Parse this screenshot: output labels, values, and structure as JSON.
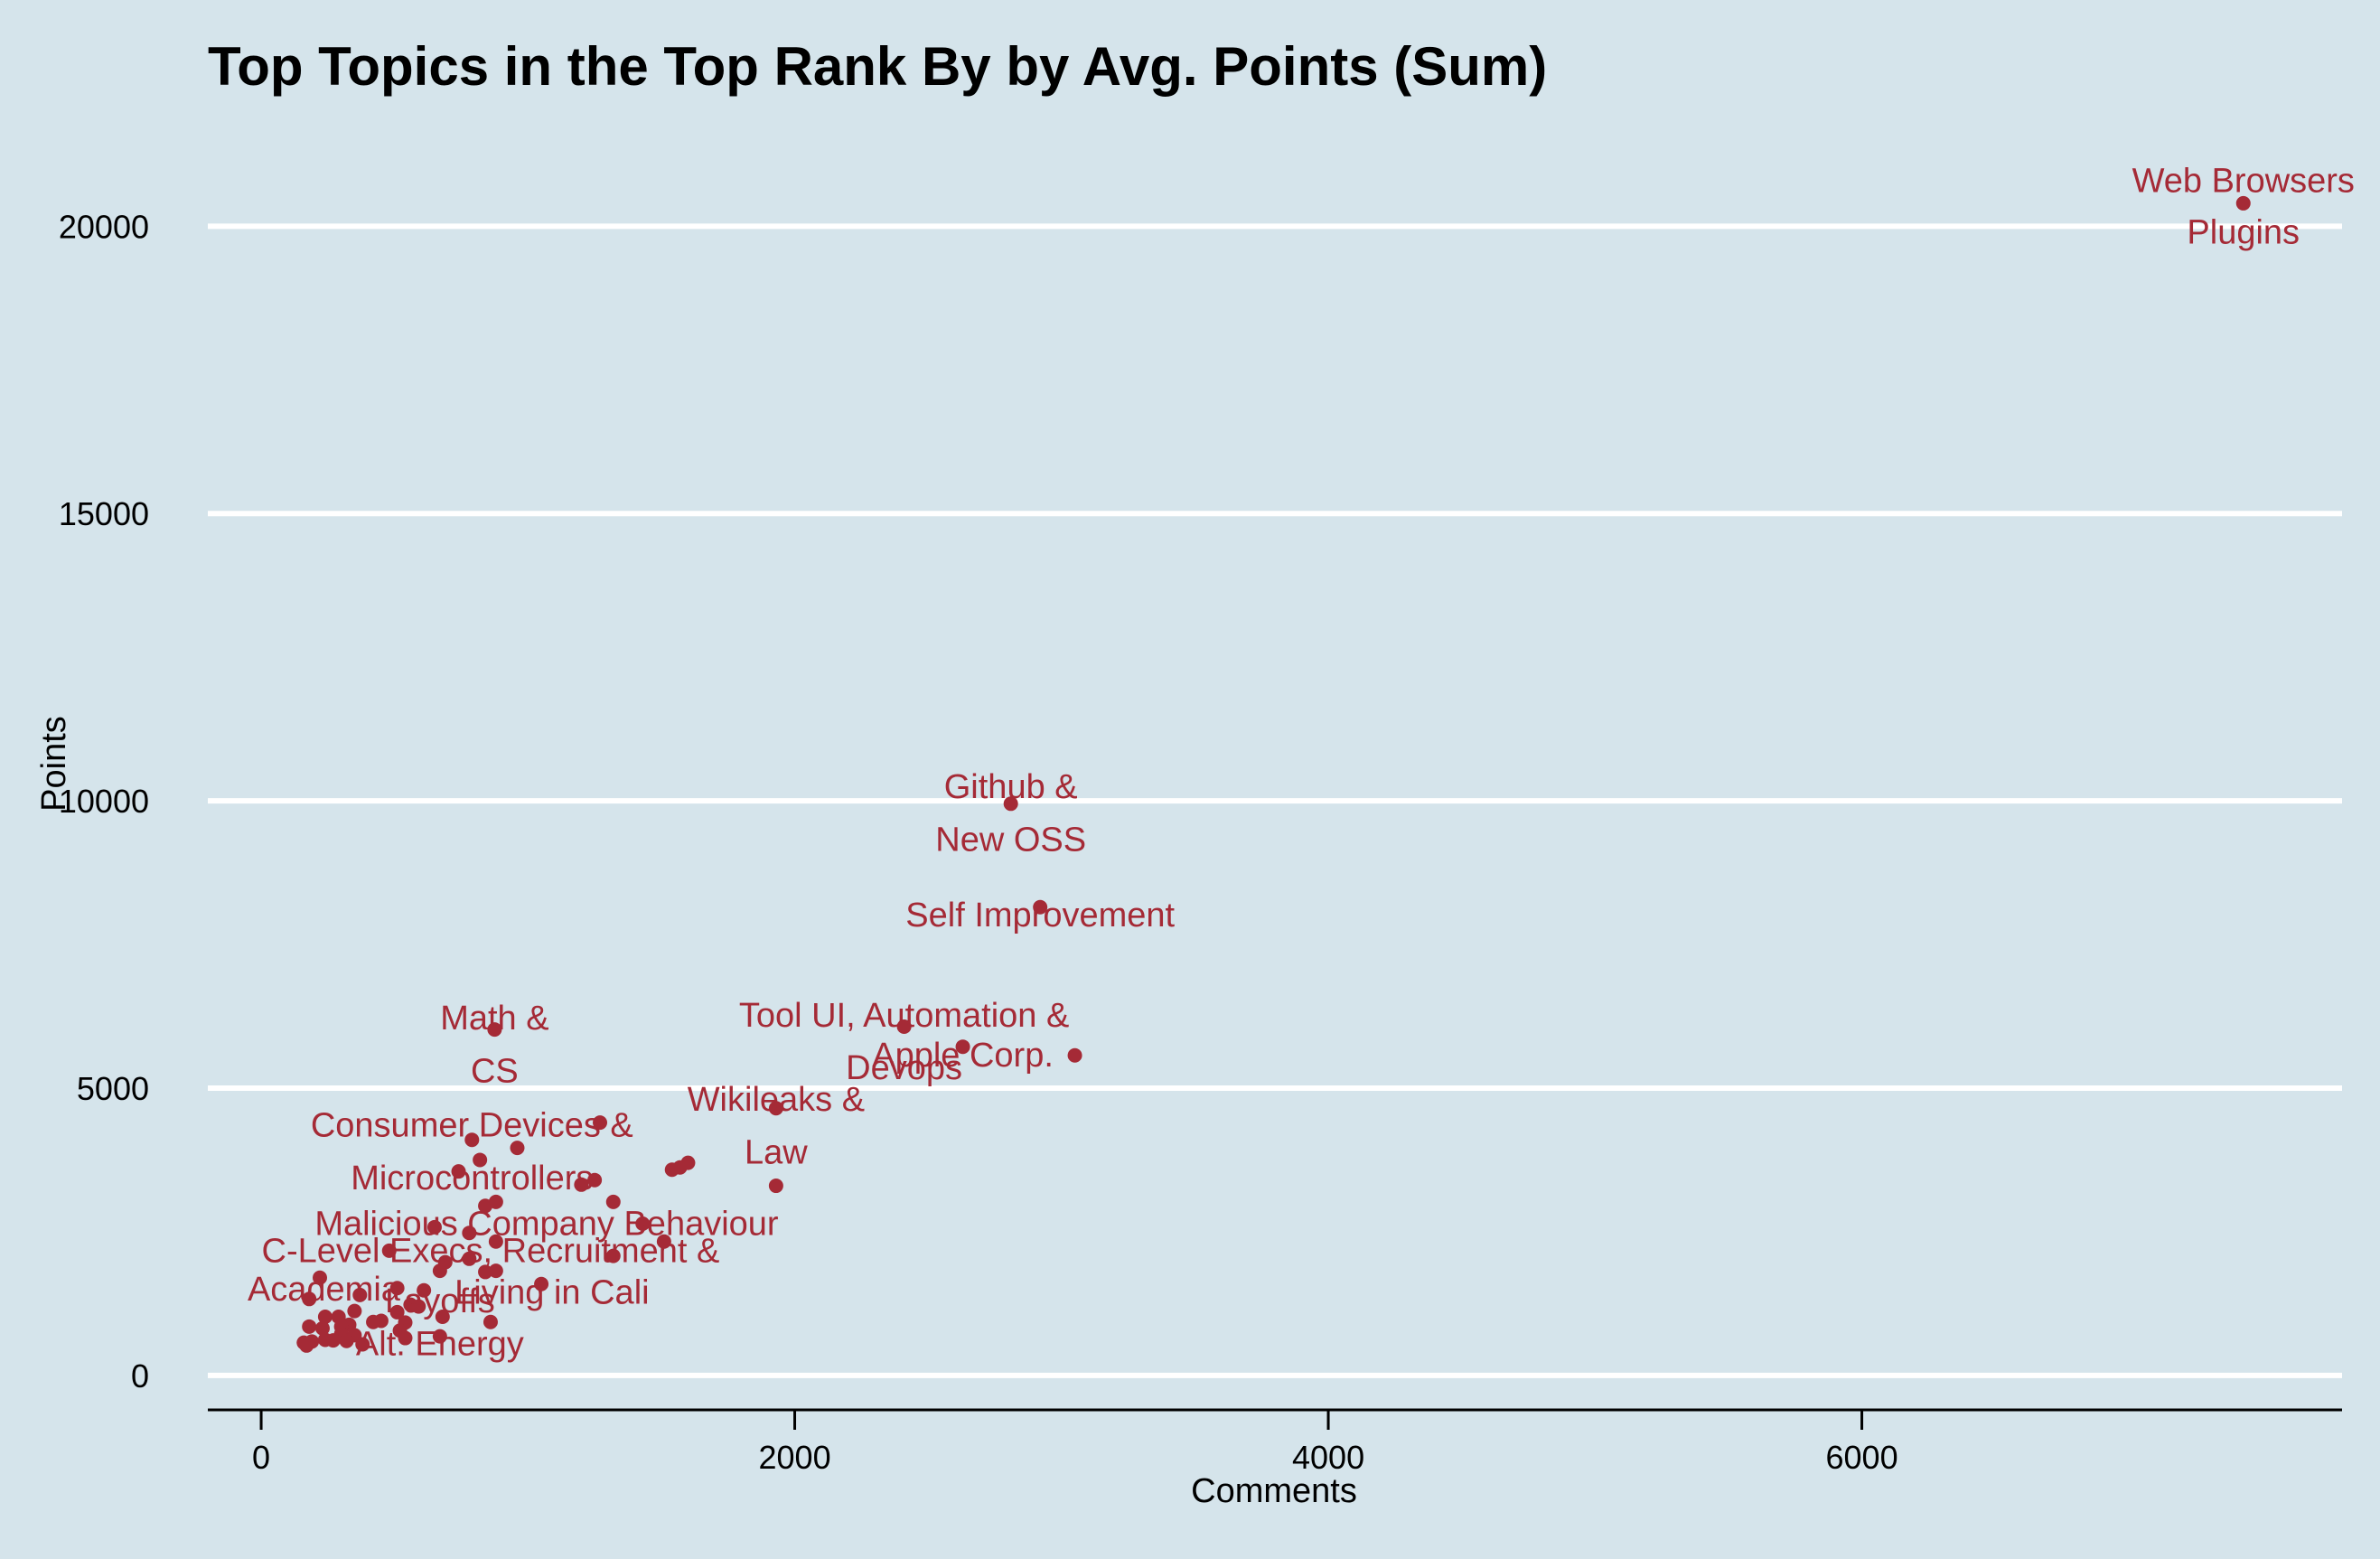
{
  "chart_data": {
    "type": "scatter",
    "title": "Top Topics in the Top Rank By by Avg. Points (Sum)",
    "xlabel": "Comments",
    "ylabel": "Points",
    "xlim": [
      -200,
      7800
    ],
    "ylim": [
      -600,
      21500
    ],
    "xticks": [
      0,
      2000,
      4000,
      6000
    ],
    "yticks": [
      0,
      5000,
      10000,
      15000,
      20000
    ],
    "grid": "horizontal",
    "colors": {
      "background": "#d5e4eb",
      "point": "#a52a36",
      "grid": "#ffffff",
      "text": "#000000"
    },
    "points": [
      {
        "x": 7430,
        "y": 20400
      },
      {
        "x": 2810,
        "y": 9950
      },
      {
        "x": 2920,
        "y": 8150
      },
      {
        "x": 2410,
        "y": 6070
      },
      {
        "x": 2630,
        "y": 5720
      },
      {
        "x": 3050,
        "y": 5570
      },
      {
        "x": 875,
        "y": 6020
      },
      {
        "x": 1930,
        "y": 4650
      },
      {
        "x": 1930,
        "y": 3300
      },
      {
        "x": 1600,
        "y": 3700
      },
      {
        "x": 1570,
        "y": 3620
      },
      {
        "x": 1540,
        "y": 3580
      },
      {
        "x": 1270,
        "y": 4400
      },
      {
        "x": 960,
        "y": 3960
      },
      {
        "x": 790,
        "y": 4100
      },
      {
        "x": 820,
        "y": 3750
      },
      {
        "x": 740,
        "y": 3550
      },
      {
        "x": 1250,
        "y": 3400
      },
      {
        "x": 1200,
        "y": 3320
      },
      {
        "x": 1320,
        "y": 3020
      },
      {
        "x": 880,
        "y": 3020
      },
      {
        "x": 840,
        "y": 2950
      },
      {
        "x": 1430,
        "y": 2640
      },
      {
        "x": 650,
        "y": 2580
      },
      {
        "x": 780,
        "y": 2480
      },
      {
        "x": 1510,
        "y": 2330
      },
      {
        "x": 880,
        "y": 2330
      },
      {
        "x": 480,
        "y": 2170
      },
      {
        "x": 1320,
        "y": 2080
      },
      {
        "x": 780,
        "y": 2030
      },
      {
        "x": 690,
        "y": 1970
      },
      {
        "x": 670,
        "y": 1820
      },
      {
        "x": 840,
        "y": 1800
      },
      {
        "x": 880,
        "y": 1820
      },
      {
        "x": 220,
        "y": 1700
      },
      {
        "x": 1050,
        "y": 1590
      },
      {
        "x": 510,
        "y": 1520
      },
      {
        "x": 610,
        "y": 1480
      },
      {
        "x": 370,
        "y": 1400
      },
      {
        "x": 180,
        "y": 1330
      },
      {
        "x": 560,
        "y": 1230
      },
      {
        "x": 590,
        "y": 1200
      },
      {
        "x": 350,
        "y": 1120
      },
      {
        "x": 510,
        "y": 1100
      },
      {
        "x": 680,
        "y": 1020
      },
      {
        "x": 240,
        "y": 1020
      },
      {
        "x": 290,
        "y": 1020
      },
      {
        "x": 450,
        "y": 950
      },
      {
        "x": 420,
        "y": 930
      },
      {
        "x": 860,
        "y": 930
      },
      {
        "x": 540,
        "y": 920
      },
      {
        "x": 330,
        "y": 880
      },
      {
        "x": 180,
        "y": 850
      },
      {
        "x": 300,
        "y": 850
      },
      {
        "x": 230,
        "y": 820
      },
      {
        "x": 520,
        "y": 780
      },
      {
        "x": 300,
        "y": 720
      },
      {
        "x": 350,
        "y": 700
      },
      {
        "x": 670,
        "y": 680
      },
      {
        "x": 540,
        "y": 650
      },
      {
        "x": 240,
        "y": 620
      },
      {
        "x": 270,
        "y": 610
      },
      {
        "x": 320,
        "y": 600
      },
      {
        "x": 190,
        "y": 590
      },
      {
        "x": 160,
        "y": 570
      },
      {
        "x": 380,
        "y": 540
      },
      {
        "x": 170,
        "y": 520
      }
    ],
    "annotations": [
      {
        "text": "Web Browsers",
        "x": 7430,
        "y": 20800
      },
      {
        "text": "Plugins",
        "x": 7430,
        "y": 19900
      },
      {
        "text": "Github &",
        "x": 2810,
        "y": 10250
      },
      {
        "text": "New OSS",
        "x": 2810,
        "y": 9330
      },
      {
        "text": "Self Improvement",
        "x": 2920,
        "y": 8020
      },
      {
        "text": "Tool UI, Automation &",
        "x": 2410,
        "y": 6270
      },
      {
        "text": "Apple Corp.",
        "x": 2630,
        "y": 5580
      },
      {
        "text": "Devops",
        "x": 2410,
        "y": 5360
      },
      {
        "text": "Math &",
        "x": 875,
        "y": 6230
      },
      {
        "text": "CS",
        "x": 875,
        "y": 5310
      },
      {
        "text": "Wikileaks &",
        "x": 1930,
        "y": 4810
      },
      {
        "text": "Law",
        "x": 1930,
        "y": 3890
      },
      {
        "text": "Consumer Devices &",
        "x": 790,
        "y": 4360
      },
      {
        "text": "Microcontrollers",
        "x": 790,
        "y": 3440
      },
      {
        "text": "Malicious Company Behaviour",
        "x": 1070,
        "y": 2650
      },
      {
        "text": "C-Level Execs, Recruitment &",
        "x": 860,
        "y": 2180
      },
      {
        "text": "Academia",
        "x": 235,
        "y": 1510
      },
      {
        "text": "Living in Cali",
        "x": 1090,
        "y": 1450
      },
      {
        "text": "Layoffs",
        "x": 670,
        "y": 1300
      },
      {
        "text": "Alt. Energy",
        "x": 670,
        "y": 560
      }
    ]
  }
}
